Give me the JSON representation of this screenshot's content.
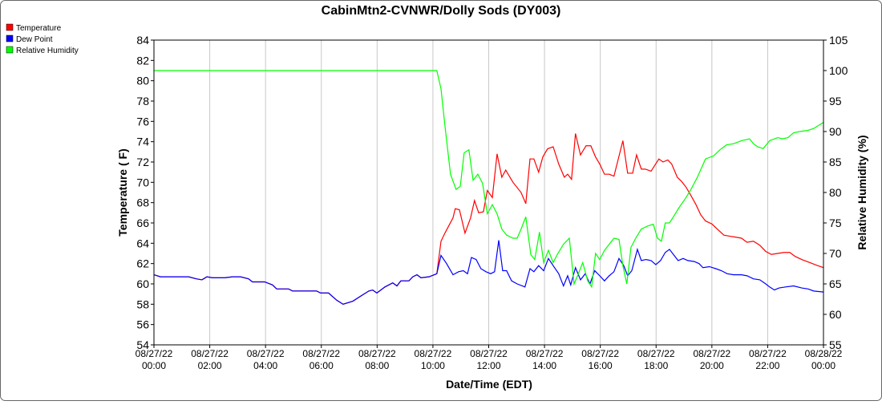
{
  "chart_data": {
    "type": "line",
    "title": "CabinMtn2-CVNWR/Dolly Sods (DY003)",
    "xlabel": "Date/Time (EDT)",
    "ylabel": "Temperature ( F)",
    "y2label": "Relative Humidity (%)",
    "grid": true,
    "legend": "top-left",
    "xlim": [
      0,
      24
    ],
    "xticks": [
      {
        "value": 0,
        "label": [
          "08/27/22",
          "00:00"
        ]
      },
      {
        "value": 2,
        "label": [
          "08/27/22",
          "02:00"
        ]
      },
      {
        "value": 4,
        "label": [
          "08/27/22",
          "04:00"
        ]
      },
      {
        "value": 6,
        "label": [
          "08/27/22",
          "06:00"
        ]
      },
      {
        "value": 8,
        "label": [
          "08/27/22",
          "08:00"
        ]
      },
      {
        "value": 10,
        "label": [
          "08/27/22",
          "10:00"
        ]
      },
      {
        "value": 12,
        "label": [
          "08/27/22",
          "12:00"
        ]
      },
      {
        "value": 14,
        "label": [
          "08/27/22",
          "14:00"
        ]
      },
      {
        "value": 16,
        "label": [
          "08/27/22",
          "16:00"
        ]
      },
      {
        "value": 18,
        "label": [
          "08/27/22",
          "18:00"
        ]
      },
      {
        "value": 20,
        "label": [
          "08/27/22",
          "20:00"
        ]
      },
      {
        "value": 22,
        "label": [
          "08/27/22",
          "22:00"
        ]
      },
      {
        "value": 24,
        "label": [
          "08/28/22",
          "00:00"
        ]
      }
    ],
    "ylim": [
      54,
      84
    ],
    "yticks": [
      54,
      56,
      58,
      60,
      62,
      64,
      66,
      68,
      70,
      72,
      74,
      76,
      78,
      80,
      82,
      84
    ],
    "y2lim": [
      55,
      105
    ],
    "y2ticks": [
      55,
      60,
      65,
      70,
      75,
      80,
      85,
      90,
      95,
      100,
      105
    ],
    "series": [
      {
        "name": "Temperature",
        "color": "#ff0000",
        "x": [
          0,
          0.23,
          1.24,
          1.52,
          1.72,
          1.9,
          2.1,
          2.53,
          2.82,
          3.1,
          3.39,
          3.53,
          3.97,
          4.25,
          4.4,
          4.83,
          4.97,
          5.83,
          5.98,
          6.26,
          6.55,
          6.78,
          7.13,
          7.41,
          7.7,
          7.84,
          7.99,
          8.28,
          8.56,
          8.71,
          8.85,
          9.14,
          9.28,
          9.43,
          9.57,
          9.86,
          10.14,
          10.29,
          10.43,
          10.72,
          10.8,
          10.95,
          11.15,
          11.35,
          11.49,
          11.64,
          11.81,
          11.95,
          12.13,
          12.3,
          12.47,
          12.61,
          12.87,
          13.16,
          13.33,
          13.48,
          13.62,
          13.79,
          13.94,
          14.11,
          14.31,
          14.51,
          14.71,
          14.83,
          14.97,
          15.11,
          15.29,
          15.49,
          15.66,
          15.83,
          15.98,
          16.15,
          16.32,
          16.49,
          16.81,
          16.98,
          17.16,
          17.3,
          17.47,
          17.61,
          17.82,
          18.1,
          18.25,
          18.42,
          18.56,
          18.76,
          18.91,
          19.08,
          19.25,
          19.43,
          19.6,
          19.77,
          20,
          20.23,
          20.43,
          20.63,
          20.86,
          21.06,
          21.26,
          21.49,
          21.72,
          21.93,
          22.13,
          22.36,
          22.59,
          22.79,
          22.99,
          23.22,
          23.51,
          23.79,
          24
        ],
        "values": [
          60.9,
          60.7,
          60.7,
          60.5,
          60.4,
          60.7,
          60.6,
          60.6,
          60.7,
          60.7,
          60.5,
          60.2,
          60.2,
          59.9,
          59.5,
          59.5,
          59.3,
          59.3,
          59.1,
          59.1,
          58.4,
          58,
          58.3,
          58.8,
          59.3,
          59.4,
          59.1,
          59.7,
          60.1,
          59.8,
          60.3,
          60.3,
          60.7,
          60.9,
          60.6,
          60.7,
          61,
          64.2,
          65,
          66.5,
          67.4,
          67.3,
          65,
          66.5,
          68.2,
          67,
          67.1,
          69.2,
          68.5,
          72.8,
          70.5,
          71.2,
          70,
          69,
          67.9,
          72.3,
          72.3,
          71,
          72.5,
          73.3,
          73.5,
          71.8,
          70.5,
          70.8,
          70.3,
          74.8,
          72.7,
          73.6,
          73.6,
          72.5,
          71.8,
          70.8,
          70.8,
          70.6,
          74.1,
          70.9,
          70.9,
          72.7,
          71.3,
          71.3,
          71.1,
          72.3,
          72,
          72.2,
          71.8,
          70.5,
          70.1,
          69.5,
          68.7,
          67.8,
          66.8,
          66.2,
          65.9,
          65.3,
          64.8,
          64.7,
          64.6,
          64.5,
          64.1,
          64.2,
          63.8,
          63.2,
          62.9,
          63,
          63.1,
          63.1,
          62.7,
          62.4,
          62.1,
          61.8,
          61.6
        ]
      },
      {
        "name": "Dew Point",
        "color": "#0000ff",
        "x": [
          0,
          0.23,
          1.24,
          1.52,
          1.72,
          1.9,
          2.1,
          2.53,
          2.82,
          3.1,
          3.39,
          3.53,
          3.97,
          4.25,
          4.4,
          4.83,
          4.97,
          5.83,
          5.98,
          6.26,
          6.55,
          6.78,
          7.13,
          7.41,
          7.7,
          7.84,
          7.99,
          8.28,
          8.56,
          8.71,
          8.85,
          9.14,
          9.28,
          9.43,
          9.57,
          9.86,
          10.14,
          10.29,
          10.49,
          10.72,
          10.92,
          11.09,
          11.24,
          11.38,
          11.55,
          11.72,
          11.9,
          12.07,
          12.21,
          12.36,
          12.5,
          12.64,
          12.82,
          13.02,
          13.3,
          13.48,
          13.62,
          13.79,
          13.97,
          14.14,
          14.31,
          14.51,
          14.68,
          14.83,
          14.94,
          15.11,
          15.29,
          15.46,
          15.63,
          15.8,
          15.98,
          16.15,
          16.32,
          16.49,
          16.67,
          16.84,
          16.98,
          17.13,
          17.33,
          17.47,
          17.64,
          17.82,
          17.99,
          18.16,
          18.33,
          18.48,
          18.62,
          18.79,
          18.97,
          19.14,
          19.37,
          19.54,
          19.68,
          19.91,
          20.14,
          20.34,
          20.55,
          20.78,
          21.06,
          21.26,
          21.49,
          21.72,
          21.93,
          22.07,
          22.24,
          22.41,
          22.64,
          22.93,
          23.22,
          23.45,
          23.65,
          24
        ],
        "values": [
          60.9,
          60.7,
          60.7,
          60.5,
          60.4,
          60.7,
          60.6,
          60.6,
          60.7,
          60.7,
          60.5,
          60.2,
          60.2,
          59.9,
          59.5,
          59.5,
          59.3,
          59.3,
          59.1,
          59.1,
          58.4,
          58,
          58.3,
          58.8,
          59.3,
          59.4,
          59.1,
          59.7,
          60.1,
          59.8,
          60.3,
          60.3,
          60.7,
          60.9,
          60.6,
          60.7,
          61,
          62.8,
          62,
          60.9,
          61.2,
          61.3,
          61,
          62.6,
          62.4,
          61.5,
          61.2,
          61,
          61.2,
          64.3,
          61.3,
          61.3,
          60.3,
          60,
          59.7,
          61.5,
          61.2,
          61.8,
          61.3,
          62.5,
          61.8,
          61,
          59.8,
          60.8,
          59.9,
          61.6,
          60.4,
          61,
          60,
          61.3,
          60.8,
          60.3,
          60.8,
          61.2,
          62.5,
          61.8,
          60.8,
          61.3,
          63.4,
          62.3,
          62.4,
          62.3,
          61.9,
          62.3,
          63.1,
          63.4,
          62.9,
          62.3,
          62.5,
          62.3,
          62.2,
          62,
          61.6,
          61.7,
          61.5,
          61.3,
          61,
          60.9,
          60.9,
          60.8,
          60.5,
          60.4,
          60,
          59.7,
          59.4,
          59.6,
          59.7,
          59.8,
          59.6,
          59.5,
          59.3,
          59.2
        ]
      },
      {
        "name": "Relative Humidity",
        "color": "#00ff00",
        "axis": "y2",
        "x": [
          0,
          10.14,
          10.29,
          10.43,
          10.63,
          10.83,
          10.98,
          11.12,
          11.29,
          11.44,
          11.61,
          11.78,
          11.95,
          12.13,
          12.3,
          12.47,
          12.64,
          12.87,
          13.02,
          13.16,
          13.33,
          13.51,
          13.65,
          13.82,
          13.97,
          14.14,
          14.31,
          14.48,
          14.68,
          14.89,
          15.06,
          15.2,
          15.37,
          15.55,
          15.69,
          15.83,
          15.98,
          16.15,
          16.32,
          16.49,
          16.67,
          16.81,
          16.95,
          17.1,
          17.27,
          17.47,
          17.7,
          17.9,
          18.05,
          18.19,
          18.33,
          18.48,
          18.62,
          18.82,
          19.05,
          19.25,
          19.48,
          19.77,
          20.06,
          20.29,
          20.52,
          20.78,
          21.06,
          21.35,
          21.49,
          21.64,
          21.84,
          22.07,
          22.36,
          22.53,
          22.73,
          22.93,
          23.16,
          23.45,
          23.65,
          24
        ],
        "values": [
          100,
          100,
          97,
          91,
          83,
          80.5,
          81,
          86.5,
          87,
          82,
          83,
          81.5,
          76.5,
          78,
          76.5,
          74,
          73,
          72.5,
          72.5,
          74,
          76,
          69.8,
          69,
          73.5,
          68.5,
          70.5,
          68.5,
          70,
          71.5,
          72.5,
          65,
          66.5,
          68.5,
          65.5,
          64.5,
          70,
          69,
          70.5,
          71.5,
          72.5,
          72.3,
          68,
          65,
          71,
          72.5,
          74,
          74.5,
          74.8,
          72.5,
          72,
          75,
          75,
          76,
          77.5,
          79,
          80.5,
          82.5,
          85.5,
          86,
          87,
          87.8,
          88,
          88.5,
          88.8,
          88,
          87.5,
          87.2,
          88.5,
          89,
          88.8,
          89,
          89.8,
          90,
          90.2,
          90.5,
          91.5
        ]
      }
    ]
  }
}
